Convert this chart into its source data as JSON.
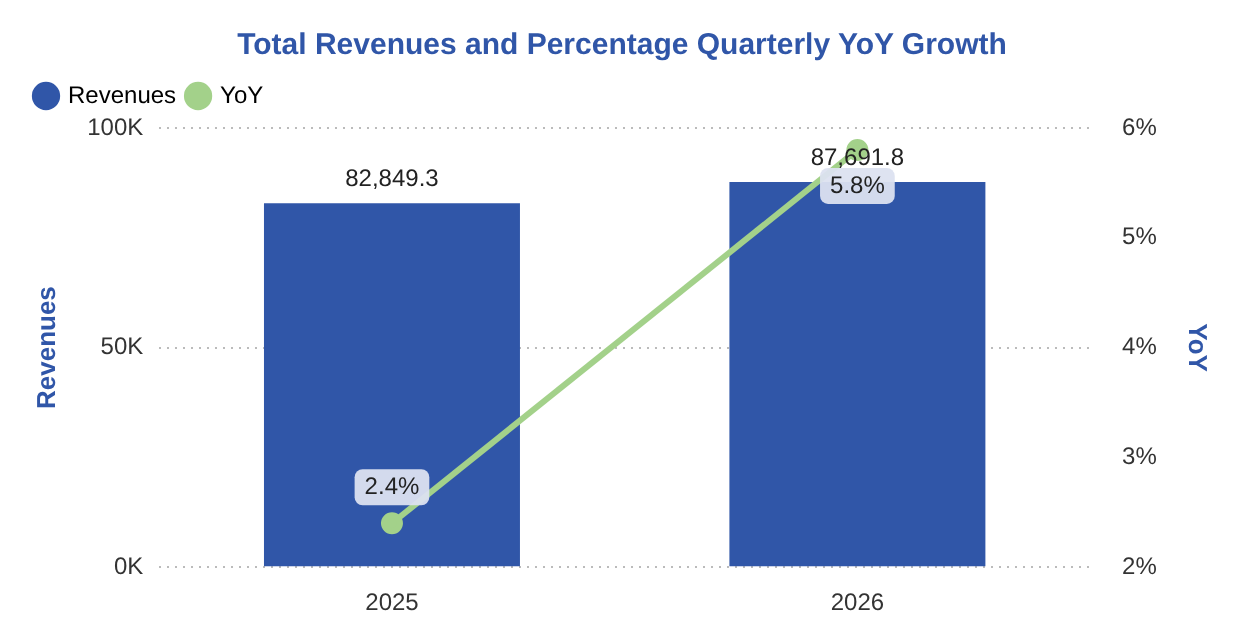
{
  "chart_data": {
    "type": "bar",
    "title": "Total Revenues and Percentage Quarterly YoY Growth",
    "ylabel": "Revenues",
    "y2label": "YoY",
    "categories": [
      "2025",
      "2026"
    ],
    "series": [
      {
        "name": "Revenues",
        "color": "#3056a8",
        "values": [
          82849.3,
          87691.8
        ],
        "value_labels": [
          "82,849.3",
          "87,691.8"
        ]
      },
      {
        "name": "YoY",
        "type": "line",
        "axis": "y2",
        "color": "#a3d18a",
        "values": [
          2.4,
          5.8
        ],
        "value_labels": [
          "2.4%",
          "5.8%"
        ]
      }
    ],
    "ylim": [
      0,
      100000
    ],
    "yticks": [
      {
        "value": 0,
        "label": "0K"
      },
      {
        "value": 50000,
        "label": "50K"
      },
      {
        "value": 100000,
        "label": "100K"
      }
    ],
    "y2lim": [
      2,
      6
    ],
    "y2ticks": [
      {
        "value": 2,
        "label": "2%"
      },
      {
        "value": 3,
        "label": "3%"
      },
      {
        "value": 4,
        "label": "4%"
      },
      {
        "value": 5,
        "label": "5%"
      },
      {
        "value": 6,
        "label": "6%"
      }
    ],
    "grid": "y",
    "legend": "top left",
    "marker": "circle",
    "line_style": "solid"
  }
}
